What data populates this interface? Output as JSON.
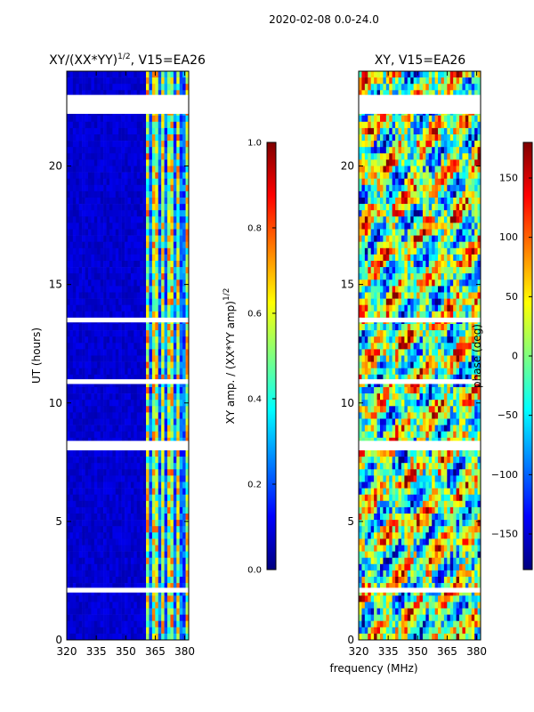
{
  "figure": {
    "suptitle": "2020-02-08 0.0-24.0",
    "shared_xlabel": "frequency (MHz)"
  },
  "colors": {
    "jet": [
      "#00007f",
      "#0000ff",
      "#007fff",
      "#00ffff",
      "#7fff7f",
      "#ffff00",
      "#ff7f00",
      "#ff0000",
      "#7f0000"
    ],
    "gap": "#ffffff",
    "frame": "#000000"
  },
  "chart_data": [
    {
      "type": "heatmap",
      "title_main": "XY/(XX*YY)",
      "title_exp": "1/2",
      "title_rest": ", V15=EA26",
      "xlabel": "",
      "ylabel": "UT (hours)",
      "xlim": [
        320,
        382
      ],
      "ylim": [
        0,
        24
      ],
      "xticks": [
        320,
        335,
        350,
        365,
        380
      ],
      "yticks": [
        0,
        5,
        10,
        15,
        20
      ],
      "active_band_mhz": [
        360,
        382
      ],
      "quiet_band_mhz": [
        320,
        360
      ],
      "blank_intervals_hours": [
        [
          22.2,
          23.0
        ],
        [
          13.4,
          13.6
        ],
        [
          10.8,
          11.0
        ],
        [
          8.0,
          8.4
        ],
        [
          2.0,
          2.2
        ]
      ],
      "colorbar": {
        "label_main": "XY amp. / (XX*YY amp)",
        "label_exp": "1/2",
        "range": [
          0.0,
          1.0
        ],
        "ticks": [
          "0.0",
          "0.2",
          "0.4",
          "0.6",
          "0.8",
          "1.0"
        ],
        "tick_values": [
          0.0,
          0.2,
          0.4,
          0.6,
          0.8,
          1.0
        ]
      }
    },
    {
      "type": "heatmap",
      "title_main": "XY, V15=EA26",
      "xlabel": "frequency (MHz)",
      "ylabel": "",
      "xlim": [
        320,
        382
      ],
      "ylim": [
        0,
        24
      ],
      "xticks": [
        320,
        335,
        350,
        365,
        380
      ],
      "yticks": [
        0,
        5,
        10,
        15,
        20
      ],
      "blank_intervals_hours": [
        [
          22.2,
          23.0
        ],
        [
          13.4,
          13.6
        ],
        [
          10.8,
          11.0
        ],
        [
          8.0,
          8.4
        ],
        [
          2.0,
          2.2
        ]
      ],
      "colorbar": {
        "label_main": "phase (deg)",
        "range": [
          -180,
          180
        ],
        "ticks": [
          "150",
          "100",
          "50",
          "0",
          "−50",
          "−100",
          "−150"
        ],
        "tick_values": [
          150,
          100,
          50,
          0,
          -50,
          -100,
          -150
        ]
      }
    }
  ]
}
